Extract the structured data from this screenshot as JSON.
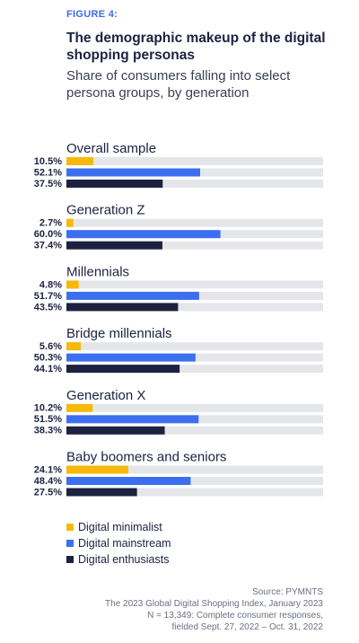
{
  "figure_label": "FIGURE 4:",
  "title": "The demographic makeup of the digital shopping personas",
  "subtitle": "Share of consumers falling into select persona groups, by generation",
  "colors": {
    "minimalist": "#f6b90b",
    "mainstream": "#3c6ff0",
    "enthusiasts": "#1c2240",
    "track": "#e5e6ea"
  },
  "legend": [
    {
      "label": "Digital minimalist",
      "color": "#f6b90b"
    },
    {
      "label": "Digital mainstream",
      "color": "#3c6ff0"
    },
    {
      "label": "Digital enthusiasts",
      "color": "#1c2240"
    }
  ],
  "source": [
    "Source: PYMNTS",
    "The 2023 Global Digital Shopping Index, January 2023",
    "N = 13,349: Complete consumer responses,",
    "fielded Sept. 27, 2022 – Oct. 31, 2022"
  ],
  "chart_data": {
    "type": "bar",
    "orientation": "horizontal",
    "xlim": [
      0,
      100
    ],
    "categories": [
      "Overall sample",
      "Generation Z",
      "Millennials",
      "Bridge millennials",
      "Generation X",
      "Baby boomers and seniors"
    ],
    "series": [
      {
        "name": "Digital minimalist",
        "values": [
          10.5,
          2.7,
          4.8,
          5.6,
          10.2,
          24.1
        ],
        "labels": [
          "10.5%",
          "2.7%",
          "4.8%",
          "5.6%",
          "10.2%",
          "24.1%"
        ]
      },
      {
        "name": "Digital mainstream",
        "values": [
          52.1,
          60.0,
          51.7,
          50.3,
          51.5,
          48.4
        ],
        "labels": [
          "52.1%",
          "60.0%",
          "51.7%",
          "50.3%",
          "51.5%",
          "48.4%"
        ]
      },
      {
        "name": "Digital enthusiasts",
        "values": [
          37.5,
          37.4,
          43.5,
          44.1,
          38.3,
          27.5
        ],
        "labels": [
          "37.5%",
          "37.4%",
          "43.5%",
          "44.1%",
          "38.3%",
          "27.5%"
        ]
      }
    ]
  }
}
